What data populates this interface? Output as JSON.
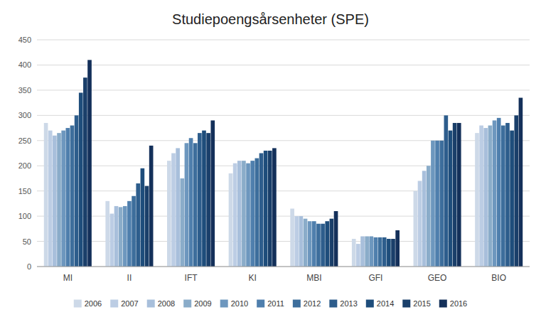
{
  "chart_data": {
    "type": "bar",
    "title": "Studiepoengsårsenheter (SPE)",
    "categories": [
      "MI",
      "II",
      "IFT",
      "KI",
      "MBI",
      "GFI",
      "GEO",
      "BIO"
    ],
    "series": [
      {
        "name": "2006",
        "color": "#cdd9e8",
        "values": [
          285,
          130,
          210,
          185,
          115,
          55,
          150,
          265
        ]
      },
      {
        "name": "2007",
        "color": "#bccde4",
        "values": [
          270,
          105,
          225,
          205,
          100,
          45,
          170,
          280
        ]
      },
      {
        "name": "2008",
        "color": "#a8bfdb",
        "values": [
          260,
          120,
          235,
          210,
          100,
          60,
          190,
          275
        ]
      },
      {
        "name": "2009",
        "color": "#8aacc9",
        "values": [
          265,
          118,
          175,
          210,
          95,
          60,
          200,
          280
        ]
      },
      {
        "name": "2010",
        "color": "#6d97be",
        "values": [
          270,
          120,
          245,
          205,
          90,
          60,
          250,
          290
        ]
      },
      {
        "name": "2011",
        "color": "#4f7fad",
        "values": [
          275,
          130,
          255,
          210,
          90,
          58,
          250,
          295
        ]
      },
      {
        "name": "2012",
        "color": "#3d6e9c",
        "values": [
          280,
          140,
          245,
          215,
          85,
          58,
          250,
          280
        ]
      },
      {
        "name": "2013",
        "color": "#2d5d8c",
        "values": [
          300,
          165,
          265,
          225,
          85,
          58,
          300,
          285
        ]
      },
      {
        "name": "2014",
        "color": "#1e4d7b",
        "values": [
          345,
          195,
          270,
          230,
          90,
          55,
          270,
          270
        ]
      },
      {
        "name": "2015",
        "color": "#1a3f6a",
        "values": [
          375,
          160,
          265,
          230,
          95,
          55,
          285,
          300
        ]
      },
      {
        "name": "2016",
        "color": "#14305a",
        "values": [
          410,
          240,
          290,
          235,
          110,
          72,
          285,
          335
        ]
      }
    ],
    "ylim": [
      0,
      450
    ],
    "yticks": [
      0,
      50,
      100,
      150,
      200,
      250,
      300,
      350,
      400,
      450
    ],
    "grid": true,
    "legend": "bottom"
  }
}
